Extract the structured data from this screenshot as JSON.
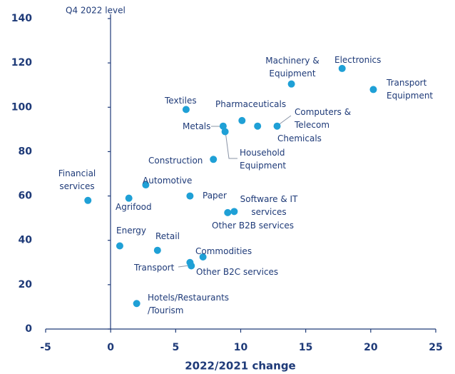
{
  "chart_data": {
    "type": "scatter",
    "ylabel": "Q4 2022 level",
    "xlabel": "2022/2021 change",
    "color": "#1fa0d6",
    "xlim": [
      -5,
      25
    ],
    "xticks": [
      -5,
      0,
      5,
      10,
      15,
      20,
      25
    ],
    "ylim": [
      0,
      140
    ],
    "yticks": [
      0,
      20,
      40,
      60,
      80,
      100,
      120,
      140
    ],
    "labels": [
      [
        "Financial",
        "services"
      ],
      [
        "Agrifood"
      ],
      [
        "Automotive"
      ],
      [
        "Energy"
      ],
      [
        "Retail"
      ],
      [
        "Hotels/Restaurants",
        "/Tourism"
      ],
      [
        "Textiles"
      ],
      [
        "Construction"
      ],
      [
        "Paper"
      ],
      [
        "Metals"
      ],
      [
        "Household",
        "Equipment"
      ],
      [
        "Pharmaceuticals"
      ],
      [
        "Chemicals"
      ],
      [
        "Computers &",
        "Telecom"
      ],
      [
        "Machinery &",
        "Equipment"
      ],
      [
        "Electronics"
      ],
      [
        "Transport",
        "Equipment"
      ],
      [
        "Software & IT",
        "services"
      ],
      [
        "Other B2B services"
      ],
      [
        "Commodities"
      ],
      [
        "Transport"
      ],
      [
        "Other B2C services"
      ]
    ],
    "x": [
      -1.75,
      1.4,
      2.7,
      0.7,
      3.6,
      2.0,
      5.8,
      7.9,
      6.1,
      8.65,
      8.8,
      10.1,
      11.3,
      12.8,
      13.9,
      17.8,
      20.2,
      9.5,
      9.0,
      7.1,
      6.1,
      6.2
    ],
    "values": [
      58,
      59,
      65,
      37.5,
      35.5,
      11.5,
      99,
      76.5,
      60,
      91.5,
      89,
      94,
      91.5,
      91.5,
      110.5,
      117.5,
      108,
      53,
      52.5,
      32.5,
      30,
      28.5
    ]
  }
}
